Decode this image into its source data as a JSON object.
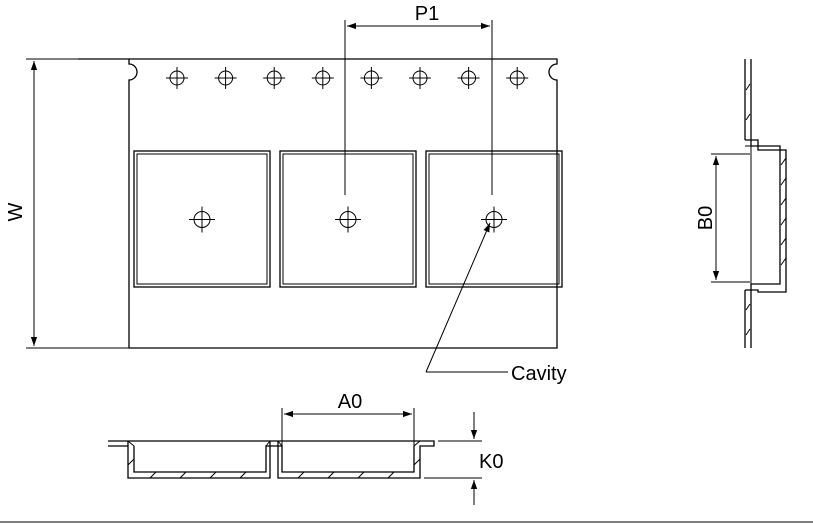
{
  "labels": {
    "p1": "P1",
    "w": "W",
    "b0": "B0",
    "a0": "A0",
    "k0": "K0",
    "cavity": "Cavity"
  },
  "sprocket_hole_count": 8,
  "pocket_count": 3
}
